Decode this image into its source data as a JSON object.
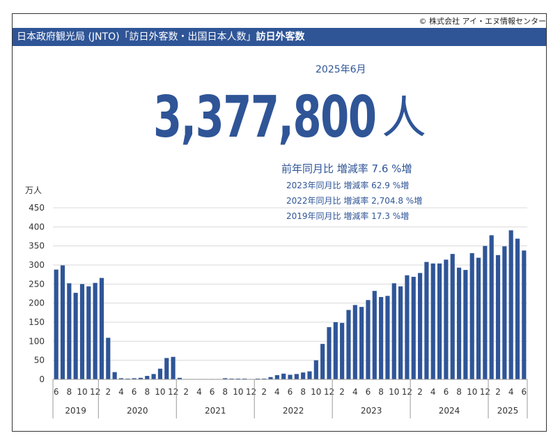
{
  "copyright": "© 株式会社 アイ・エヌ情報センター",
  "header": {
    "prefix": "日本政府観光局 (JNTO)「訪日外客数・出国日本人数」",
    "title": "訪日外客数"
  },
  "headline": {
    "period": "2025年6月",
    "value": "3,377,800",
    "unit": "人",
    "yoy": "前年同月比 増減率  7.6 %増",
    "comparisons": [
      "2023年同月比 増減率 62.9 %増",
      "2022年同月比 増減率 2,704.8 %増",
      "2019年同月比 増減率 17.3 %増"
    ]
  },
  "colors": {
    "bar": "#2f5597",
    "header_bg": "#2f5597",
    "grid": "#d9d9d9",
    "text": "#2f5597"
  },
  "chart_data": {
    "type": "bar",
    "ylabel": "万人",
    "ylim": [
      0,
      450
    ],
    "yticks": [
      0,
      50,
      100,
      150,
      200,
      250,
      300,
      350,
      400,
      450
    ],
    "grid": true,
    "months": [
      6,
      7,
      8,
      9,
      10,
      11,
      12,
      1,
      2,
      3,
      4,
      5,
      6,
      7,
      8,
      9,
      10,
      11,
      12,
      1,
      2,
      3,
      4,
      5,
      6,
      7,
      8,
      9,
      10,
      11,
      12,
      1,
      2,
      3,
      4,
      5,
      6,
      7,
      8,
      9,
      10,
      11,
      12,
      1,
      2,
      3,
      4,
      5,
      6,
      7,
      8,
      9,
      10,
      11,
      12,
      1,
      2,
      3,
      4,
      5,
      6,
      7,
      8,
      9,
      10,
      11,
      12,
      1,
      2,
      3,
      4,
      5,
      6
    ],
    "values": [
      288,
      299,
      252,
      227,
      250,
      244,
      253,
      266,
      109,
      19,
      3,
      2,
      3,
      4,
      9,
      14,
      28,
      56,
      59,
      4,
      1,
      1,
      1,
      1,
      1,
      1,
      3,
      2,
      2,
      2,
      1,
      2,
      2,
      6,
      11,
      15,
      12,
      14,
      18,
      21,
      50,
      93,
      137,
      150,
      148,
      182,
      195,
      190,
      208,
      232,
      216,
      219,
      252,
      244,
      273,
      269,
      279,
      308,
      304,
      304,
      314,
      329,
      293,
      287,
      331,
      319,
      350,
      378,
      326,
      349,
      391,
      369,
      338
    ],
    "month_tick_labels": [
      "6",
      "8",
      "10",
      "12",
      "2",
      "4",
      "6",
      "8",
      "10",
      "12",
      "2",
      "4",
      "6",
      "8",
      "10",
      "12",
      "2",
      "4",
      "6",
      "8",
      "10",
      "12",
      "2",
      "4",
      "6",
      "8",
      "10",
      "12",
      "2",
      "4",
      "6",
      "8",
      "10",
      "12",
      "2",
      "4",
      "6"
    ],
    "year_groups": [
      {
        "label": "2019",
        "count": 7
      },
      {
        "label": "2020",
        "count": 12
      },
      {
        "label": "2021",
        "count": 12
      },
      {
        "label": "2022",
        "count": 12
      },
      {
        "label": "2023",
        "count": 12
      },
      {
        "label": "2024",
        "count": 12
      },
      {
        "label": "2025",
        "count": 6
      }
    ]
  }
}
